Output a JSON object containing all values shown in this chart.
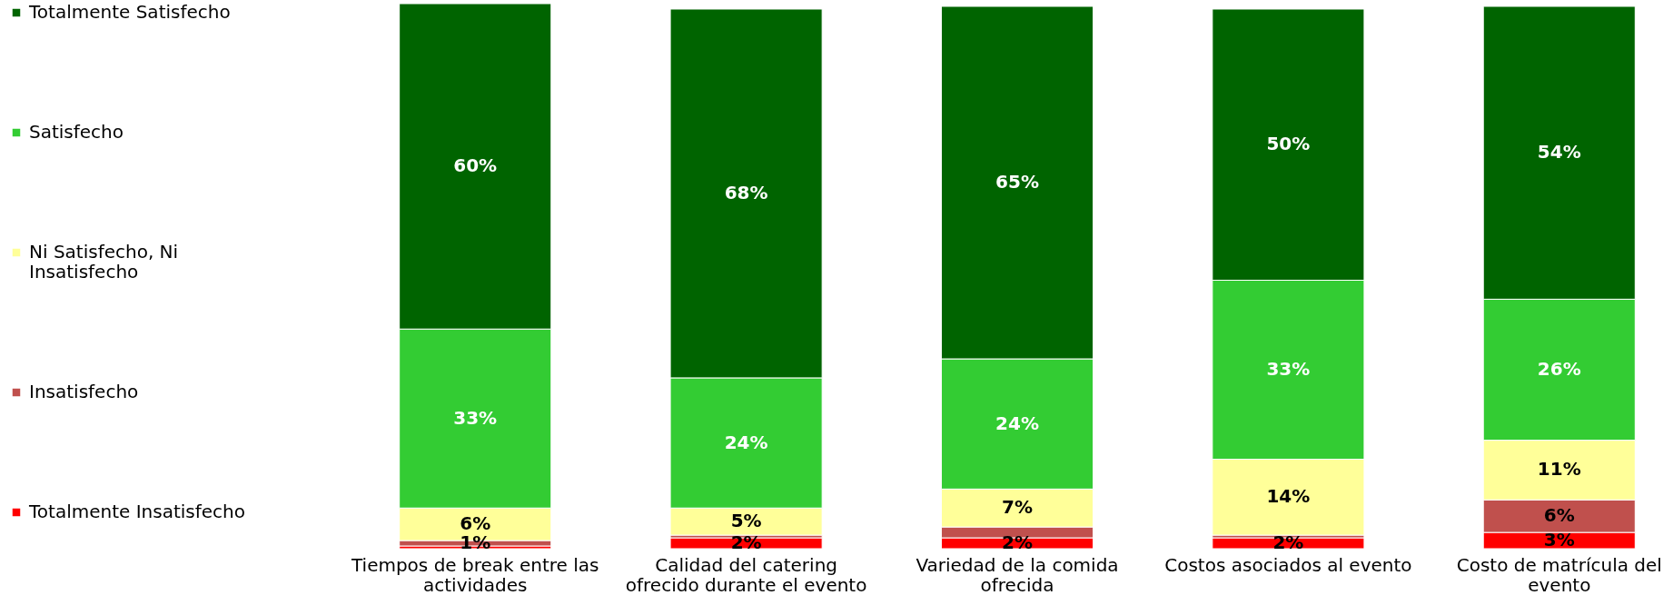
{
  "chart_data": {
    "type": "bar",
    "stacked": true,
    "legend": "left",
    "categories": [
      "Tiempos de break entre las actividades",
      "Calidad del catering ofrecido durante el evento",
      "Variedad de la comida ofrecida",
      "Costos asociados al evento",
      "Costo de matrícula del evento"
    ],
    "ylim": [
      0,
      100.5
    ],
    "series": [
      {
        "name": "Totalmente Insatisfecho",
        "color": "#ff0000",
        "values": [
          0.5,
          2,
          2,
          2,
          3
        ],
        "value_labels": [
          null,
          "2%",
          "2%",
          "2%",
          "3%"
        ]
      },
      {
        "name": "Insatisfecho",
        "color": "#c0504d",
        "values": [
          1,
          0.5,
          2,
          0.5,
          6
        ],
        "value_labels": [
          "1%",
          null,
          null,
          null,
          "6%"
        ]
      },
      {
        "name": "Ni Satisfecho, Ni Insatisfecho",
        "color": "#ffff99",
        "values": [
          6,
          5,
          7,
          14,
          11
        ],
        "value_labels": [
          "6%",
          "5%",
          "7%",
          "14%",
          "11%"
        ]
      },
      {
        "name": "Satisfecho",
        "color": "#33cc33",
        "values": [
          33,
          24,
          24,
          33,
          26
        ],
        "value_labels": [
          "33%",
          "24%",
          "24%",
          "33%",
          "26%"
        ]
      },
      {
        "name": "Totalmente Satisfecho",
        "color": "#006400",
        "values": [
          60,
          68,
          65,
          50,
          54
        ],
        "value_labels": [
          "60%",
          "68%",
          "65%",
          "50%",
          "54%"
        ]
      }
    ]
  }
}
